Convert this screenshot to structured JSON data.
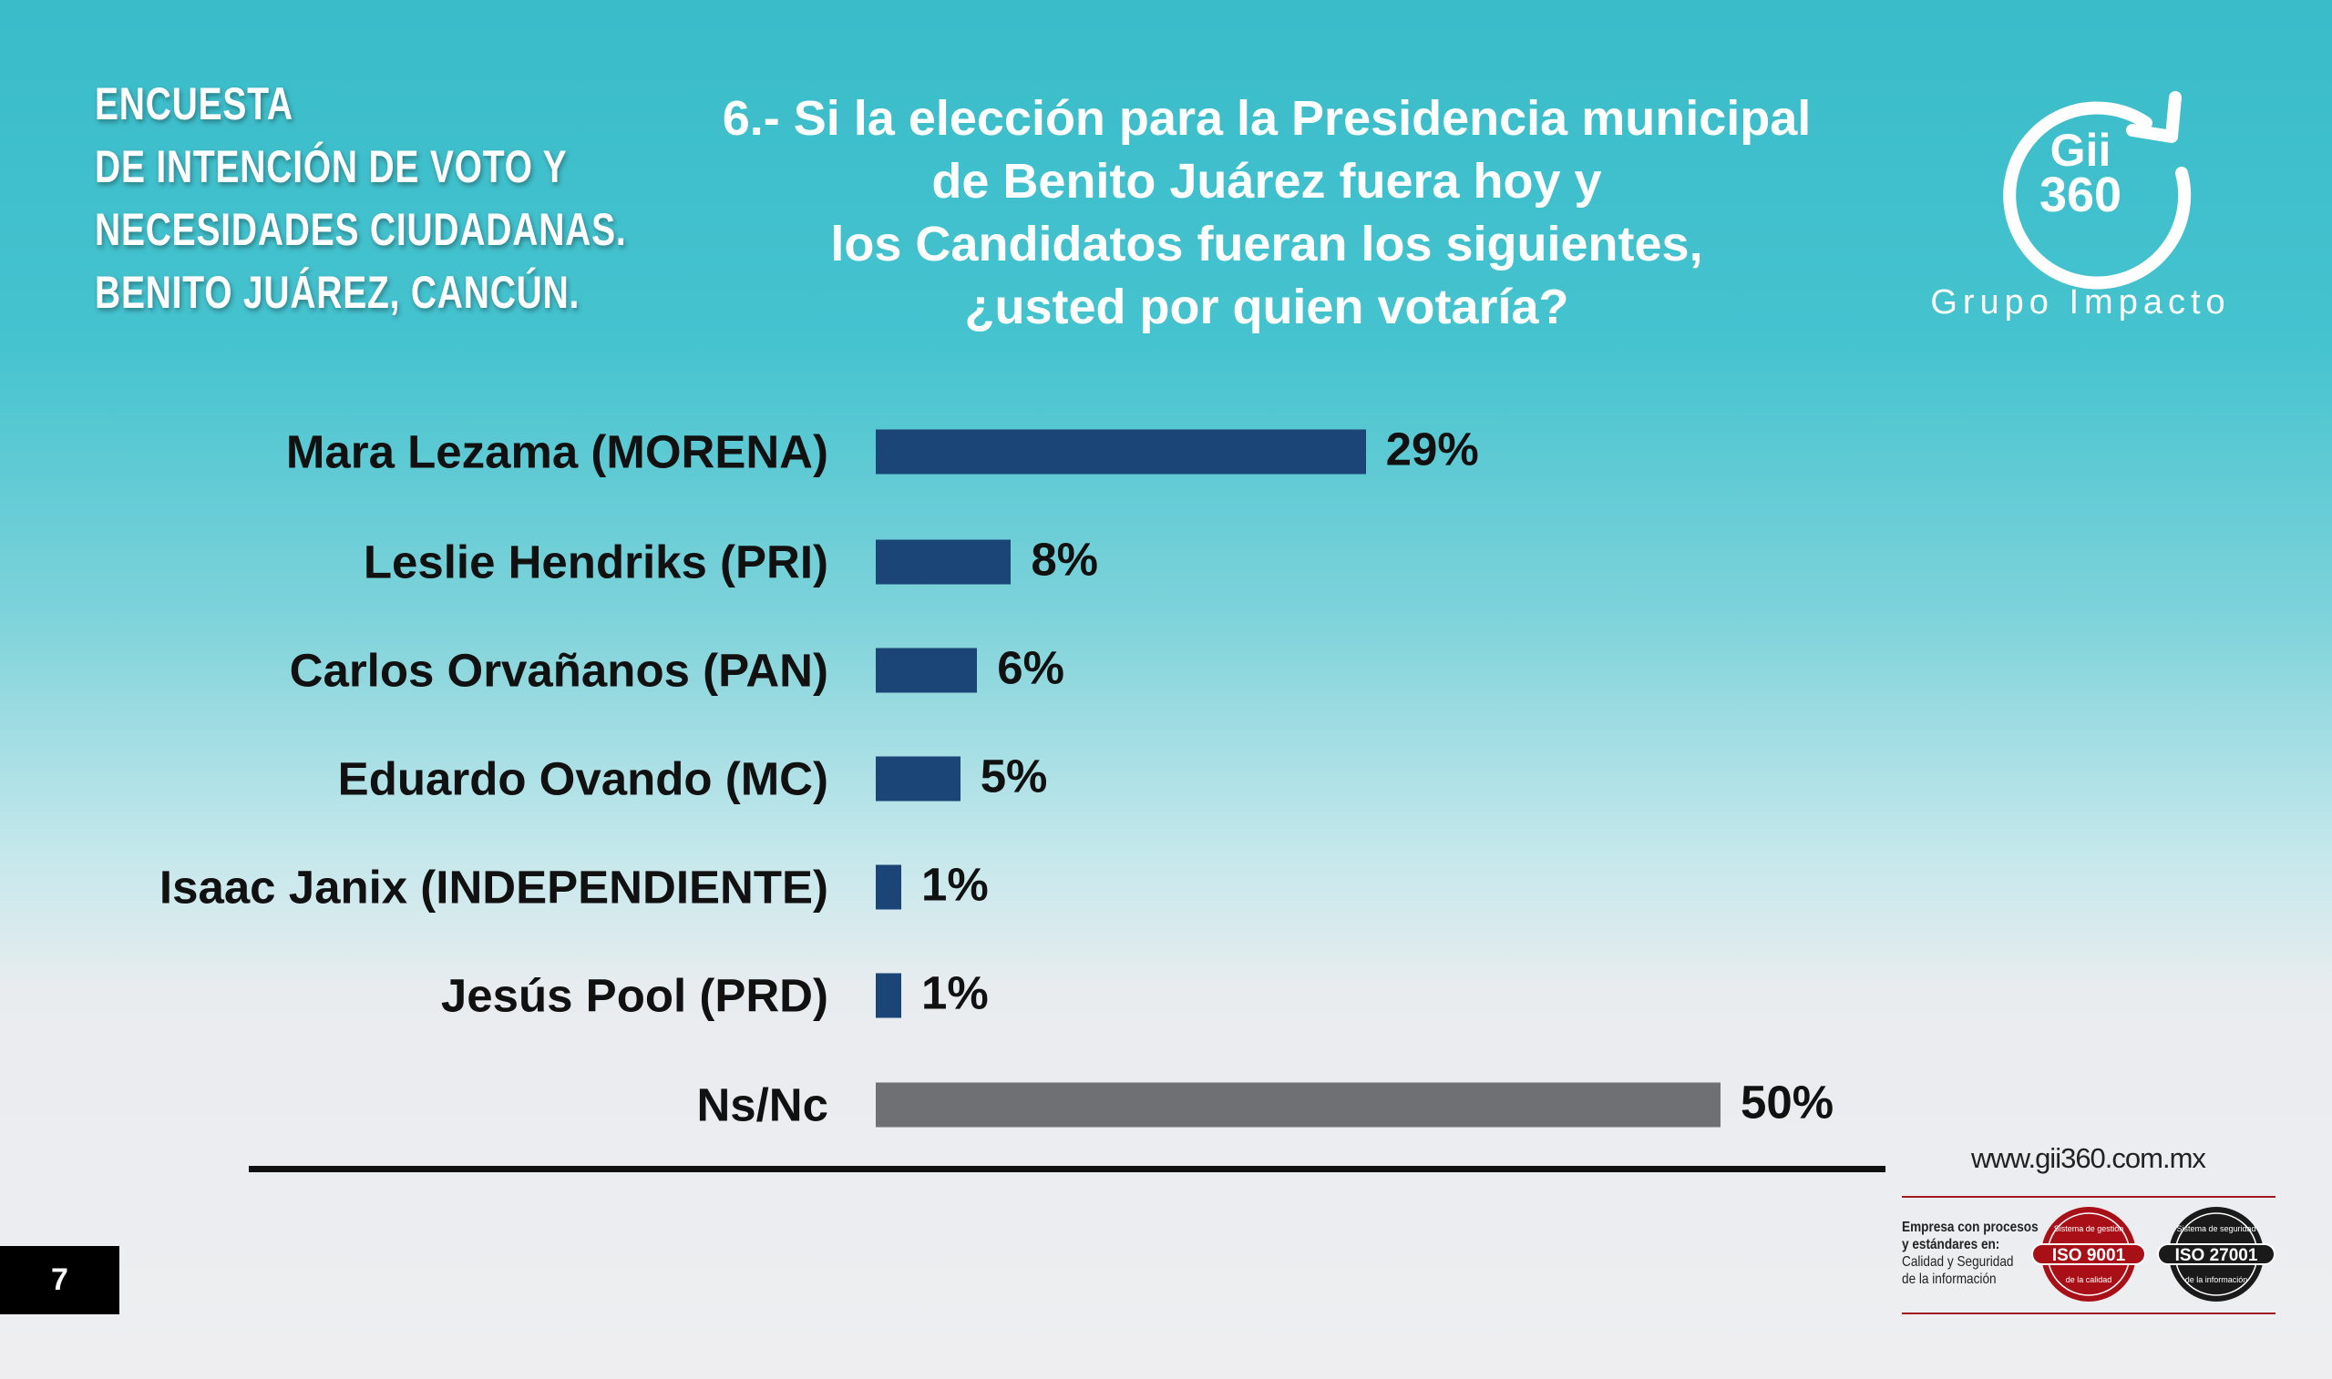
{
  "header": {
    "lines": [
      "ENCUESTA",
      "DE INTENCIÓN DE VOTO Y",
      "NECESIDADES CIUDADANAS.",
      "BENITO JUÁREZ, CANCÚN."
    ]
  },
  "logo": {
    "name_top": "Gii",
    "name_bottom": "360",
    "tagline": "Grupo Impacto"
  },
  "footer": {
    "url": "www.gii360.com.mx",
    "cert_lines": [
      "Empresa con procesos",
      "y estándares en:",
      "Calidad y Seguridad",
      "de la información"
    ],
    "iso1": {
      "label": "ISO 9001",
      "top": "Sistema de gestión",
      "bottom": "de la calidad",
      "color": "#a80f16"
    },
    "iso2": {
      "label": "ISO 27001",
      "top": "Sistema de seguridad",
      "bottom": "de la información",
      "color": "#1a1a1a"
    },
    "page_number": "7"
  },
  "chart_data": {
    "type": "bar",
    "orientation": "horizontal",
    "title": "6.- Si la elección para la Presidencia municipal de Benito Juárez fuera hoy y los Candidatos fueran los siguientes, ¿usted por quien votaría?",
    "title_lines": [
      "6.- Si la elección para la Presidencia municipal",
      "de Benito Juárez fuera hoy y",
      "los Candidatos fueran los siguientes,",
      "¿usted por quien votaría?"
    ],
    "categories": [
      "Mara Lezama (MORENA)",
      "Leslie Hendriks (PRI)",
      "Carlos Orvañanos (PAN)",
      "Eduardo Ovando (MC)",
      "Isaac Janix (INDEPENDIENTE)",
      "Jesús Pool (PRD)",
      "Ns/Nc"
    ],
    "values": [
      29,
      8,
      6,
      5,
      1,
      1,
      50
    ],
    "value_labels": [
      "29%",
      "8%",
      "6%",
      "5%",
      "1%",
      "1%",
      "50%"
    ],
    "colors": [
      "#1a4576",
      "#1a4576",
      "#1a4576",
      "#1a4576",
      "#1a4576",
      "#1a4576",
      "#6e7073"
    ],
    "xlabel": "",
    "ylabel": "",
    "xlim": [
      0,
      50
    ],
    "grid": false,
    "legend": "none"
  }
}
